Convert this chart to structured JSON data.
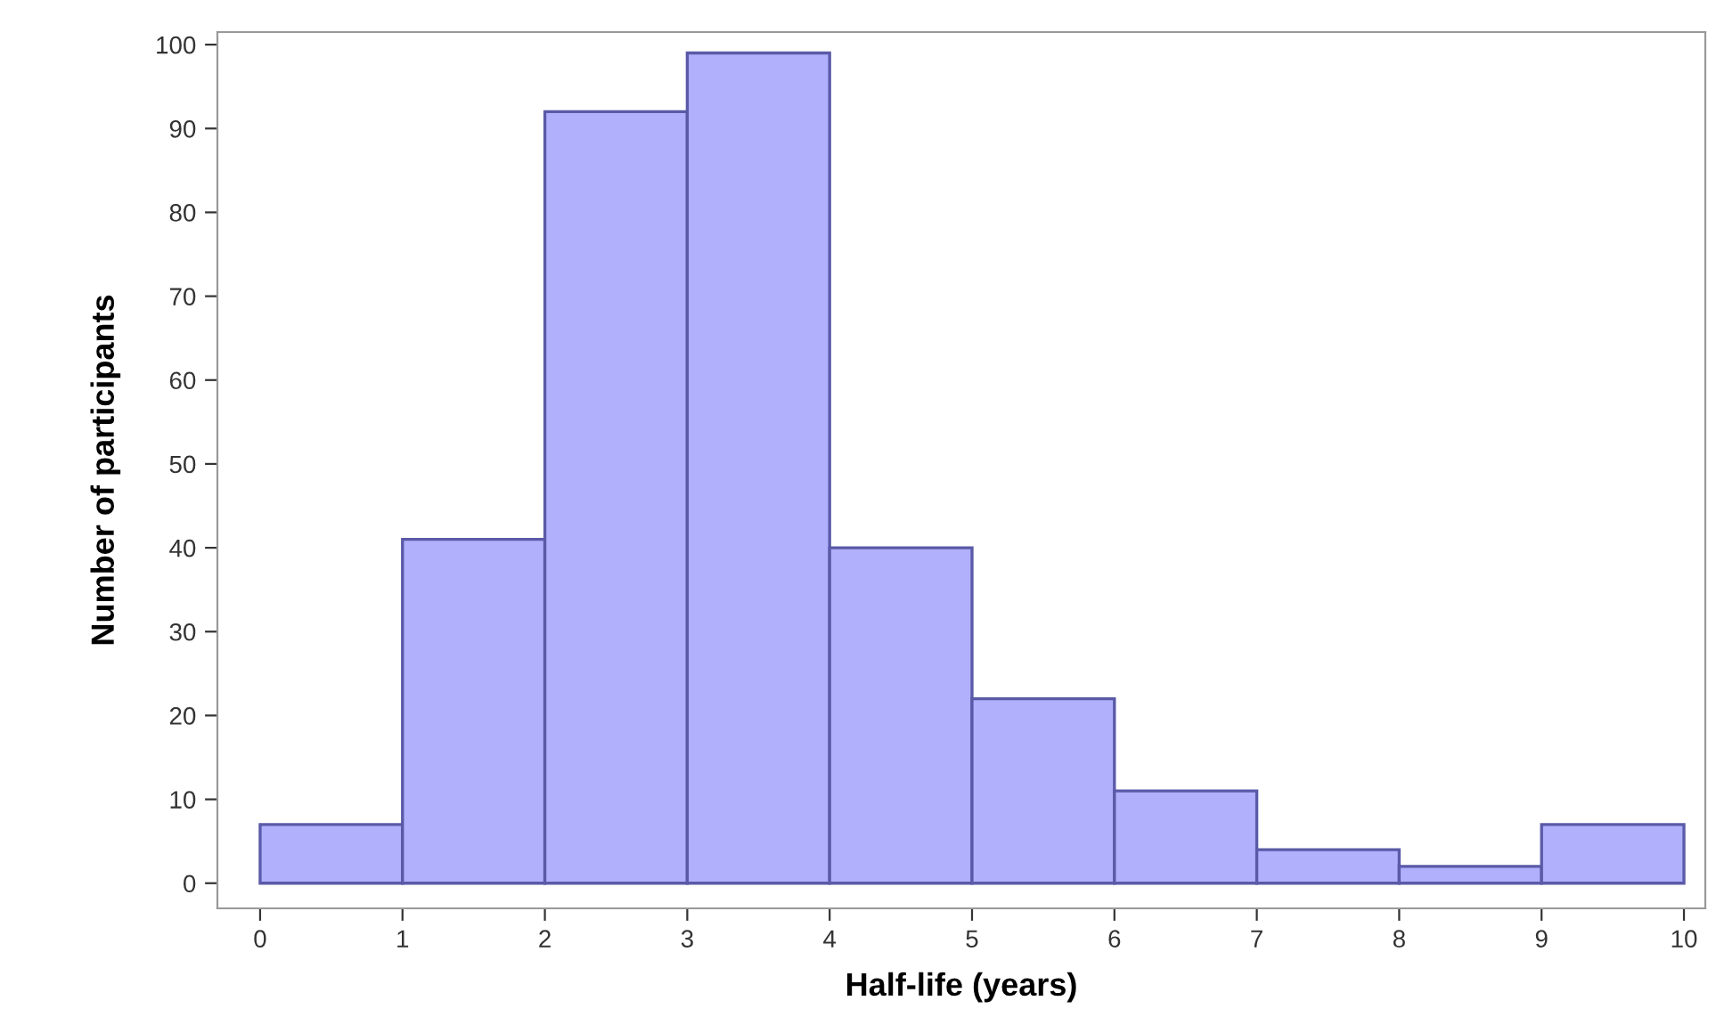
{
  "chart_data": {
    "type": "histogram",
    "xlabel": "Half-life (years)",
    "ylabel": "Number of participants",
    "bins": [
      0,
      1,
      2,
      3,
      4,
      5,
      6,
      7,
      8,
      9,
      10
    ],
    "values": [
      7,
      41,
      92,
      99,
      40,
      22,
      11,
      4,
      2,
      7
    ],
    "color": "#b0b0fc",
    "xlim": [
      -0.3,
      10.15
    ],
    "ylim": [
      -3,
      101.5
    ],
    "xticks": [
      0,
      1,
      2,
      3,
      4,
      5,
      6,
      7,
      8,
      9,
      10
    ],
    "yticks": [
      0,
      10,
      20,
      30,
      40,
      50,
      60,
      70,
      80,
      90,
      100
    ],
    "grid": false,
    "legend": false
  }
}
